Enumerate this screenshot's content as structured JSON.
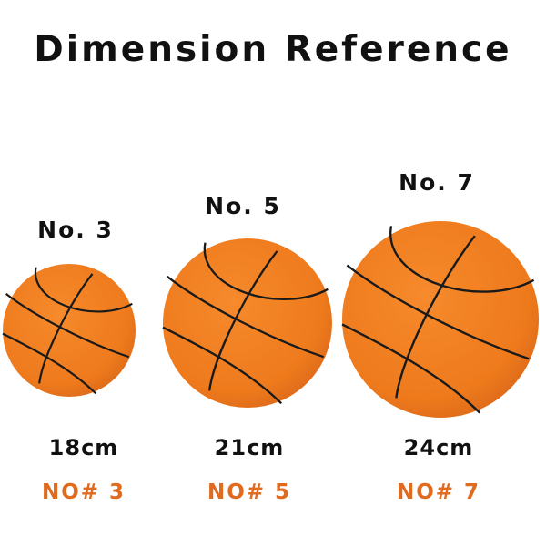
{
  "title": "Dimension Reference",
  "accent_color": "#e06a1e",
  "ball_color": "#f07d1f",
  "balls": [
    {
      "label": "No. 3",
      "size": "18cm",
      "code": "NO# 3"
    },
    {
      "label": "No. 5",
      "size": "21cm",
      "code": "NO# 5"
    },
    {
      "label": "No. 7",
      "size": "24cm",
      "code": "NO# 7"
    }
  ]
}
